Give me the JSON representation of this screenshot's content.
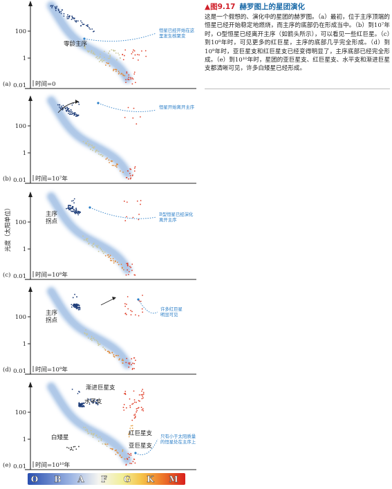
{
  "caption": {
    "figure_number": "图9.17",
    "title": "赫罗图上的星团演化",
    "body": "这是一个假想的、演化中的星团的赫罗图。（a）最初，位于主序顶端的恒星已经开始稳定地燃烧，而主序的底部仍在形成当中。（b）到10⁷年时，O型恒星已经离开主序（如箭头所示），可以看见一些红巨星。（c）到10⁸年时，可见更多的红巨星，主序的底部几乎完全形成。（d）到10⁹年时，亚巨星支和红巨星支已经变得明显了，主序底部已经完全形成。（e）到10¹⁰年时，星团的亚巨星支、红巨星支、水平支和渐进巨星支都清晰可见，许多白矮星已经形成。"
  },
  "y_axis_label": "光度（太阳单位）",
  "tick_labels": [
    "100",
    "1",
    "0.01"
  ],
  "panels": [
    {
      "panel_label": "(a)",
      "time": "时间=0",
      "labels": [
        "零龄主序"
      ],
      "note": "恒星已经开始在这\n里发生核聚变"
    },
    {
      "panel_label": "(b)",
      "time": "时间=10⁷年",
      "labels": [],
      "note": "恒星开始离开主序"
    },
    {
      "panel_label": "(c)",
      "time": "时间=10⁸年",
      "labels": [
        "主序\n拐点"
      ],
      "note": "B型恒星已经演化\n离开主序"
    },
    {
      "panel_label": "(d)",
      "time": "时间=10⁹年",
      "labels": [
        "主序\n拐点"
      ],
      "note": "许多红巨星\n明显可见"
    },
    {
      "panel_label": "(e)",
      "time": "时间=10¹⁰年",
      "labels": [
        "渐进巨星支",
        "水平支",
        "红巨星支",
        "亚巨星支",
        "白矮星"
      ],
      "note": "只有小于太阳质量\n的恒星处在主序上"
    }
  ],
  "spectral_classes": [
    "O",
    "B",
    "A",
    "F",
    "G",
    "K",
    "M"
  ],
  "colors": {
    "main_sequence_band": "#8fb3df",
    "hot_star": "#1f3e7a",
    "warm_star": "#c9c79a",
    "cool_star": "#e0402a",
    "annotation": "#2a7ec7",
    "title_red": "#d0202a",
    "title_blue": "#1a6aa8"
  }
}
